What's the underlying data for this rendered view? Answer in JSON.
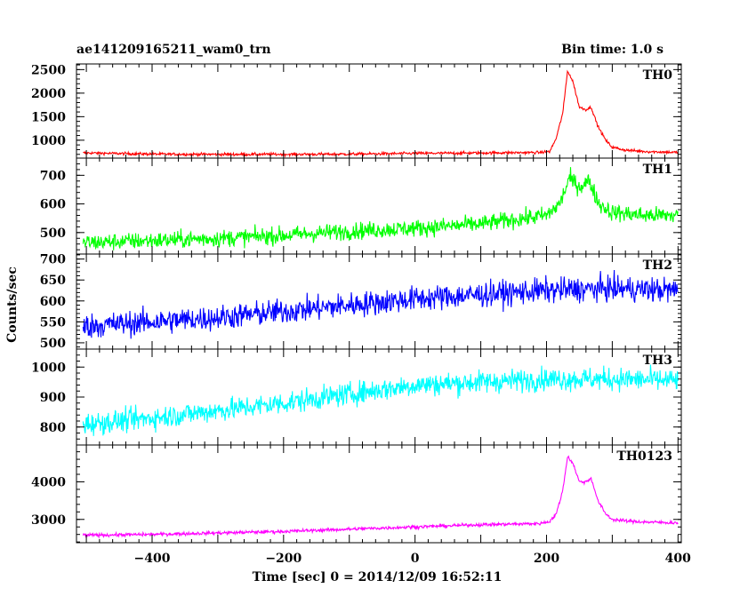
{
  "header": {
    "title_left": "ae141209165211_wam0_trn",
    "title_right": "Bin time: 1.0 s"
  },
  "chart_data": {
    "type": "line",
    "xlabel": "Time [sec] 0 = 2014/12/09 16:52:11",
    "ylabel": "Counts/sec",
    "xlim": [
      -515,
      405
    ],
    "xticks": [
      -400,
      -200,
      0,
      200,
      400
    ],
    "x_tick_labels": [
      "−400",
      "−200",
      "0",
      "200",
      "400"
    ],
    "panels": [
      {
        "name": "TH0",
        "color": "#ff0000",
        "ylim": [
          620,
          2620
        ],
        "yticks": [
          1000,
          1500,
          2000,
          2500
        ],
        "y_tick_labels": [
          "1000",
          "1500",
          "2000",
          "2500"
        ],
        "x": [
          -500,
          -400,
          -300,
          -200,
          -100,
          0,
          100,
          190,
          205,
          215,
          225,
          232,
          240,
          250,
          260,
          268,
          278,
          290,
          300,
          320,
          350,
          400
        ],
        "values": [
          730,
          705,
          700,
          700,
          705,
          720,
          730,
          740,
          760,
          1050,
          1600,
          2480,
          2250,
          1700,
          1650,
          1700,
          1300,
          1000,
          850,
          790,
          760,
          740
        ],
        "noise": 30
      },
      {
        "name": "TH1",
        "color": "#00ff00",
        "ylim": [
          425,
          760
        ],
        "yticks": [
          500,
          600,
          700
        ],
        "y_tick_labels": [
          "500",
          "600",
          "700"
        ],
        "x": [
          -500,
          -400,
          -300,
          -200,
          -100,
          0,
          100,
          200,
          220,
          235,
          250,
          265,
          280,
          300,
          350,
          400
        ],
        "values": [
          465,
          472,
          480,
          490,
          505,
          515,
          530,
          560,
          600,
          690,
          660,
          680,
          600,
          570,
          560,
          560
        ],
        "noise": 30
      },
      {
        "name": "TH2",
        "color": "#0000ff",
        "ylim": [
          485,
          712
        ],
        "yticks": [
          500,
          550,
          600,
          650,
          700
        ],
        "y_tick_labels": [
          "500",
          "550",
          "600",
          "650",
          "700"
        ],
        "x": [
          -500,
          -400,
          -300,
          -200,
          -100,
          0,
          100,
          200,
          300,
          400
        ],
        "values": [
          540,
          550,
          560,
          575,
          590,
          605,
          615,
          625,
          630,
          625
        ],
        "noise": 30
      },
      {
        "name": "TH3",
        "color": "#00ffff",
        "ylim": [
          740,
          1060
        ],
        "yticks": [
          800,
          900,
          1000
        ],
        "y_tick_labels": [
          "800",
          "900",
          "1000"
        ],
        "x": [
          -500,
          -400,
          -300,
          -200,
          -100,
          0,
          100,
          200,
          300,
          400
        ],
        "values": [
          810,
          830,
          855,
          880,
          910,
          940,
          950,
          960,
          960,
          955
        ],
        "noise": 38
      },
      {
        "name": "TH0123",
        "color": "#ff00ff",
        "ylim": [
          2380,
          4980
        ],
        "yticks": [
          3000,
          4000
        ],
        "y_tick_labels": [
          "3000",
          "4000"
        ],
        "x": [
          -500,
          -400,
          -300,
          -200,
          -100,
          0,
          100,
          190,
          205,
          215,
          225,
          232,
          240,
          250,
          260,
          268,
          278,
          290,
          300,
          320,
          350,
          400
        ],
        "values": [
          2580,
          2600,
          2640,
          2680,
          2740,
          2800,
          2860,
          2890,
          2950,
          3150,
          3800,
          4680,
          4500,
          4000,
          4000,
          4100,
          3500,
          3150,
          3000,
          2960,
          2930,
          2910
        ],
        "noise": 45
      }
    ]
  }
}
